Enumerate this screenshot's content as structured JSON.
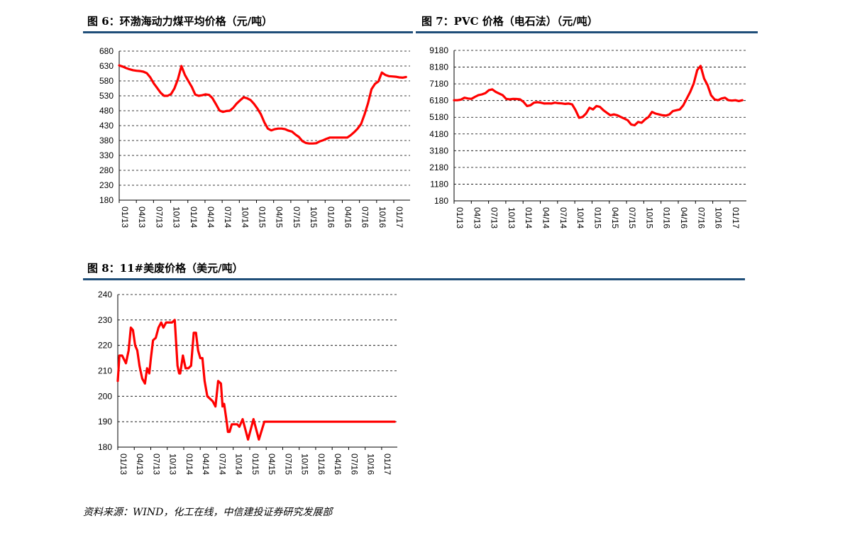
{
  "panels": [
    {
      "title": "图 6：环渤海动力煤平均价格（元/吨）"
    },
    {
      "title": "图 7：PVC 价格（电石法）（元/吨）"
    },
    {
      "title": "图 8：11#美废价格（美元/吨）"
    }
  ],
  "source": "资料来源：WIND，化工在线，中信建投证券研究发展部",
  "colors": {
    "series": "#ff0000",
    "rule": "#1f4e79",
    "axis": "#000000",
    "grid": "#000000"
  },
  "chart_data": [
    {
      "type": "line",
      "title": "图 6：环渤海动力煤平均价格（元/吨）",
      "ylim": [
        180,
        680
      ],
      "yticks": [
        180,
        230,
        280,
        330,
        380,
        430,
        480,
        530,
        580,
        630,
        680
      ],
      "xticks": [
        "01/13",
        "04/13",
        "07/13",
        "10/13",
        "01/14",
        "04/14",
        "07/14",
        "10/14",
        "01/15",
        "04/15",
        "07/15",
        "10/15",
        "01/16",
        "04/16",
        "07/16",
        "10/16",
        "01/17"
      ],
      "grid": "horizontal dashed",
      "x": [
        0,
        0.6,
        1.2,
        1.8,
        2.4,
        3.0,
        3.6,
        4.2,
        4.8,
        5.4,
        6.0,
        6.6,
        7.2,
        7.8,
        8.4,
        9.0,
        9.6,
        10.2,
        10.8,
        11.4,
        12.0,
        12.6,
        13.2,
        13.8,
        14.4,
        15.0,
        15.6,
        16.2,
        16.8,
        17.4,
        18.0,
        18.6,
        19.2,
        19.8,
        20.4,
        21.0,
        21.6,
        22.2,
        22.8,
        23.4,
        24.0,
        24.6,
        25.2,
        25.8,
        26.4,
        27.0,
        27.6,
        28.2,
        28.8,
        29.4,
        30.0,
        30.6,
        31.2,
        31.8,
        32.4,
        33.0,
        33.6,
        34.2,
        34.8,
        35.4,
        36.0,
        36.6,
        37.2,
        37.8,
        38.4,
        39.0,
        39.6,
        40.2,
        40.8,
        41.4,
        42.0,
        42.6,
        43.2,
        43.8,
        44.4,
        45.0,
        45.6,
        46.2,
        46.8,
        47.4,
        48.0,
        48.6,
        49.2,
        49.8
      ],
      "series": [
        {
          "values": [
            632,
            628,
            623,
            619,
            616,
            614,
            613,
            611,
            606,
            592,
            572,
            556,
            540,
            530,
            530,
            536,
            555,
            586,
            630,
            600,
            580,
            560,
            534,
            530,
            532,
            535,
            533,
            522,
            502,
            481,
            476,
            479,
            480,
            490,
            504,
            515,
            525,
            522,
            516,
            503,
            487,
            468,
            441,
            420,
            414,
            418,
            420,
            420,
            418,
            413,
            410,
            400,
            392,
            378,
            372,
            370,
            370,
            371,
            377,
            381,
            386,
            390,
            390,
            390,
            390,
            390,
            390,
            398,
            408,
            420,
            436,
            468,
            505,
            552,
            570,
            578,
            608,
            600,
            596,
            595,
            594,
            592,
            591,
            593
          ]
        }
      ]
    },
    {
      "type": "line",
      "title": "图 7：PVC 价格（电石法）（元/吨）",
      "ylim": [
        180,
        9180
      ],
      "yticks": [
        180,
        1180,
        2180,
        3180,
        4180,
        5180,
        6180,
        7180,
        8180,
        9180
      ],
      "xticks": [
        "01/13",
        "04/13",
        "07/13",
        "10/13",
        "01/14",
        "04/14",
        "07/14",
        "10/14",
        "01/15",
        "04/15",
        "07/15",
        "10/15",
        "01/16",
        "04/16",
        "07/16",
        "10/16",
        "01/17"
      ],
      "grid": "horizontal dashed",
      "x": [
        0,
        0.6,
        1.2,
        1.8,
        2.4,
        3.0,
        3.6,
        4.2,
        4.8,
        5.4,
        6.0,
        6.6,
        7.2,
        7.8,
        8.4,
        9.0,
        9.6,
        10.2,
        10.8,
        11.4,
        12.0,
        12.6,
        13.2,
        13.8,
        14.4,
        15.0,
        15.6,
        16.2,
        16.8,
        17.4,
        18.0,
        18.6,
        19.2,
        19.8,
        20.4,
        21.0,
        21.6,
        22.2,
        22.8,
        23.4,
        24.0,
        24.6,
        25.2,
        25.8,
        26.4,
        27.0,
        27.6,
        28.2,
        28.8,
        29.4,
        30.0,
        30.6,
        31.2,
        31.8,
        32.4,
        33.0,
        33.6,
        34.2,
        34.8,
        35.4,
        36.0,
        36.6,
        37.2,
        37.8,
        38.4,
        39.0,
        39.6,
        40.2,
        40.8,
        41.4,
        42.0,
        42.6,
        43.2,
        43.8,
        44.4,
        45.0,
        45.6,
        46.2,
        46.8,
        47.4,
        48.0,
        48.6,
        49.2,
        49.8
      ],
      "series": [
        {
          "values": [
            6200,
            6200,
            6240,
            6350,
            6300,
            6280,
            6400,
            6500,
            6550,
            6620,
            6800,
            6850,
            6700,
            6600,
            6500,
            6280,
            6250,
            6280,
            6270,
            6250,
            6100,
            5850,
            5900,
            6050,
            6080,
            6050,
            6000,
            6010,
            6000,
            6050,
            6020,
            6010,
            5980,
            6000,
            5950,
            5600,
            5150,
            5200,
            5400,
            5750,
            5650,
            5850,
            5800,
            5600,
            5450,
            5300,
            5350,
            5300,
            5200,
            5100,
            5000,
            4750,
            4700,
            4900,
            4850,
            5050,
            5200,
            5500,
            5400,
            5350,
            5300,
            5280,
            5350,
            5550,
            5600,
            5650,
            5900,
            6300,
            6700,
            7200,
            8000,
            8250,
            7500,
            7100,
            6500,
            6250,
            6200,
            6300,
            6350,
            6200,
            6180,
            6200,
            6150,
            6200
          ]
        }
      ]
    },
    {
      "type": "line",
      "title": "图 8：11#美废价格（美元/吨）",
      "ylim": [
        180,
        240
      ],
      "yticks": [
        180,
        190,
        200,
        210,
        220,
        230,
        240
      ],
      "xticks": [
        "01/13",
        "04/13",
        "07/13",
        "10/13",
        "01/14",
        "04/14",
        "07/14",
        "10/14",
        "01/15",
        "04/15",
        "07/15",
        "10/15",
        "01/16",
        "04/16",
        "07/16",
        "10/16",
        "01/17"
      ],
      "grid": "horizontal dashed",
      "x": [
        0,
        0.3,
        0.8,
        1.5,
        2.0,
        2.4,
        2.8,
        3.2,
        3.6,
        4.0,
        4.5,
        5.0,
        5.4,
        5.8,
        6.1,
        6.5,
        7.0,
        7.5,
        8.0,
        8.4,
        8.9,
        9.5,
        10.0,
        10.5,
        11.0,
        11.3,
        11.5,
        12.0,
        12.5,
        13.0,
        13.5,
        14.0,
        14.4,
        14.8,
        15.2,
        15.6,
        16.0,
        16.5,
        17.0,
        17.5,
        18.0,
        18.5,
        19.0,
        19.3,
        19.6,
        20.0,
        20.3,
        20.6,
        21.0,
        21.4,
        21.7,
        22.0,
        22.4,
        23.0,
        24.0,
        25.0,
        26.0,
        27.0,
        28.0,
        29.0,
        30.0,
        31.0,
        32.0,
        33.0,
        34.0,
        35.0,
        36.0,
        37.0,
        38.0,
        39.0,
        40.0,
        41.0,
        42.0,
        43.0,
        44.0,
        45.0,
        46.0,
        47.0,
        48.0,
        49.0,
        50.0,
        51.0
      ],
      "series": [
        {
          "values": [
            206,
            216,
            216,
            213,
            218,
            227,
            226,
            220,
            218,
            212,
            207,
            205,
            211,
            209,
            215,
            222,
            223,
            227,
            229,
            227,
            229,
            229,
            229,
            230,
            212,
            209,
            209,
            216,
            211,
            211,
            212,
            225,
            225,
            218,
            215,
            215,
            206,
            200,
            199,
            198,
            196,
            206,
            205,
            196,
            197,
            191,
            186,
            186,
            189,
            189,
            189,
            189,
            188,
            191,
            183,
            191,
            183,
            190,
            190,
            190,
            190,
            190,
            190,
            190,
            190,
            190,
            190,
            190,
            190,
            190,
            190,
            190,
            190,
            190,
            190,
            190,
            190,
            190,
            190,
            190,
            190,
            190
          ]
        }
      ]
    }
  ]
}
